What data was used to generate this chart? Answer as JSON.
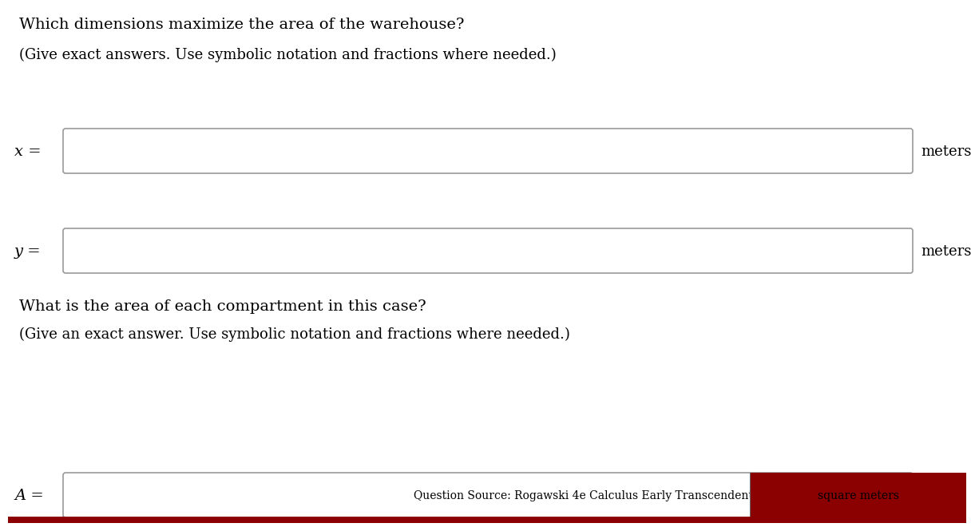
{
  "title_line1": "Which dimensions maximize the area of the warehouse?",
  "subtitle_line1": "(Give exact answers. Use symbolic notation and fractions where needed.)",
  "label_x": "x =",
  "label_y": "y =",
  "unit_x": "meters",
  "unit_y": "meters",
  "question_line1": "What is the area of each compartment in this case?",
  "question_line2": "(Give an exact answer. Use symbolic notation and fractions where needed.)",
  "label_a": "A =",
  "footer_source": "Question Source: Rogawski 4e Calculus Early Transcendentals",
  "footer_unit": "square meters",
  "background_color": "#ffffff",
  "text_color": "#000000",
  "box_edge_color": "#999999",
  "box_fill_color": "#ffffff",
  "footer_bar_color": "#8B0000",
  "font_size_title": 14,
  "font_size_subtitle": 13,
  "font_size_label": 14,
  "font_size_unit": 13,
  "font_size_footer": 9,
  "fig_width": 12.0,
  "fig_height": 6.46,
  "dpi": 100
}
